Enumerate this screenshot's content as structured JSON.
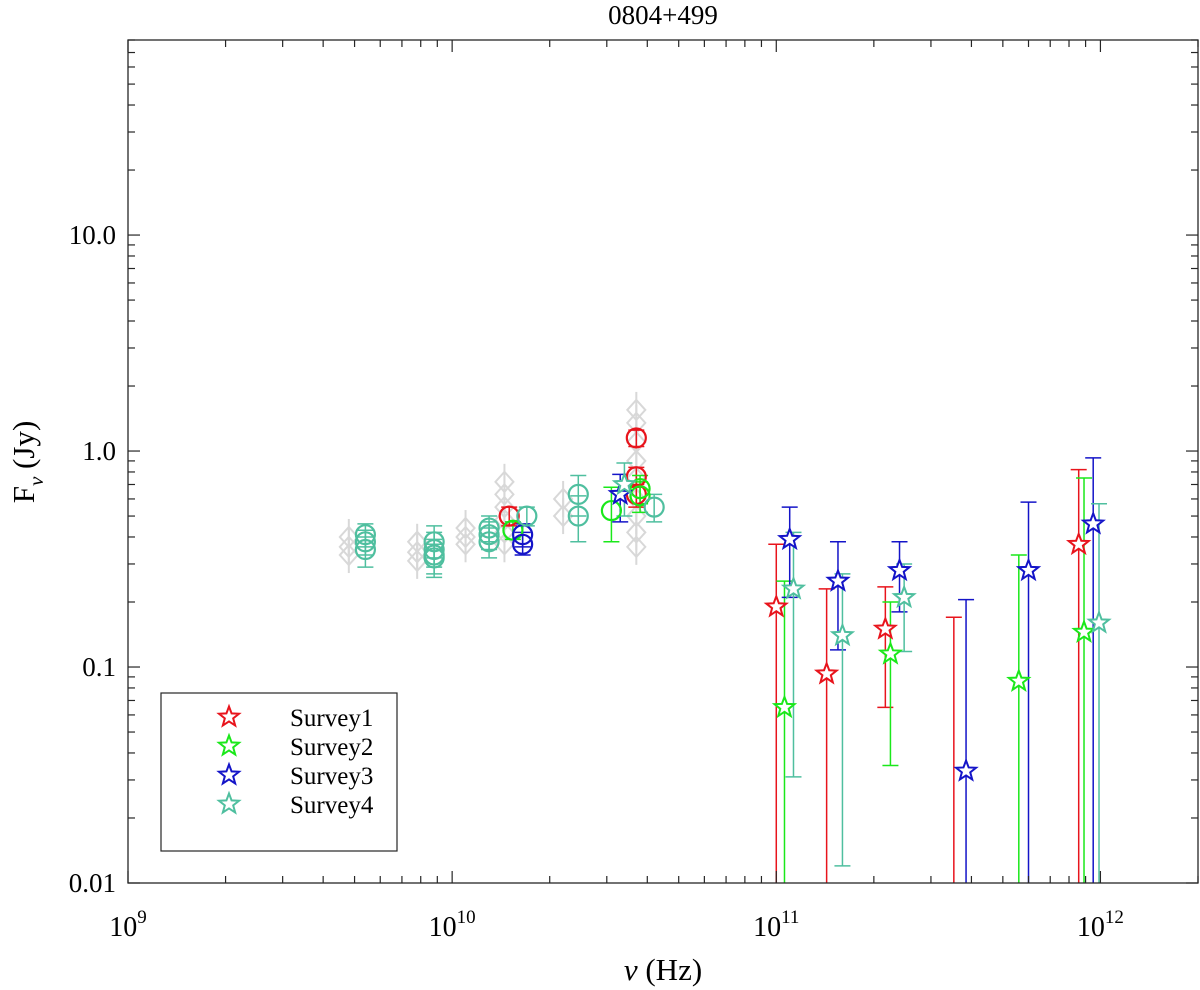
{
  "chart_data": {
    "type": "scatter",
    "title": "0804+499",
    "xlabel": {
      "base": "ν",
      "unit": " (Hz)"
    },
    "ylabel": {
      "base": "F",
      "sub": "ν",
      "unit": " (Jy)"
    },
    "xscale": "log",
    "yscale": "log",
    "xlim": [
      1000000000.0,
      2000000000000.0
    ],
    "ylim": [
      0.01,
      80
    ],
    "x_ticks": [
      {
        "value": 1000000000.0,
        "mantissa": "10",
        "exp": "9"
      },
      {
        "value": 10000000000.0,
        "mantissa": "10",
        "exp": "10"
      },
      {
        "value": 100000000000.0,
        "mantissa": "10",
        "exp": "11"
      },
      {
        "value": 1000000000000.0,
        "mantissa": "10",
        "exp": "12"
      }
    ],
    "y_ticks": [
      {
        "value": 0.01,
        "label": "0.01"
      },
      {
        "value": 0.1,
        "label": "0.1"
      },
      {
        "value": 1,
        "label": "1.0"
      },
      {
        "value": 10,
        "label": "10.0"
      }
    ],
    "legend_position": "bottom-left",
    "colors": {
      "Survey1": "#e8141c",
      "Survey2": "#1ae81a",
      "Survey3": "#1414c8",
      "Survey4": "#4fbf9f",
      "archival": "#d8d8d8"
    },
    "series": [
      {
        "name": "Survey1",
        "marker": "star",
        "points": [
          {
            "x": 100000000000.0,
            "y": 0.19,
            "lo": 0.01,
            "hi": 0.37
          },
          {
            "x": 143000000000.0,
            "y": 0.093,
            "lo": 0.01,
            "hi": 0.23
          },
          {
            "x": 217000000000.0,
            "y": 0.15,
            "lo": 0.065,
            "hi": 0.235
          },
          {
            "x": 353000000000.0,
            "y": null,
            "lo": 0.01,
            "hi": 0.17
          },
          {
            "x": 857000000000.0,
            "y": 0.37,
            "lo": 0.01,
            "hi": 0.82
          }
        ]
      },
      {
        "name": "Survey2",
        "marker": "star",
        "points": [
          {
            "x": 106000000000.0,
            "y": 0.065,
            "lo": 0.01,
            "hi": 0.25
          },
          {
            "x": 225000000000.0,
            "y": 0.115,
            "lo": 0.035,
            "hi": 0.2
          },
          {
            "x": 560000000000.0,
            "y": 0.086,
            "lo": 0.01,
            "hi": 0.33
          },
          {
            "x": 890000000000.0,
            "y": 0.145,
            "lo": 0.01,
            "hi": 0.75
          }
        ]
      },
      {
        "name": "Survey3",
        "marker": "star",
        "points": [
          {
            "x": 110000000000.0,
            "y": 0.39,
            "lo": 0.21,
            "hi": 0.55
          },
          {
            "x": 155000000000.0,
            "y": 0.25,
            "lo": 0.12,
            "hi": 0.38
          },
          {
            "x": 240000000000.0,
            "y": 0.28,
            "lo": 0.18,
            "hi": 0.38
          },
          {
            "x": 385000000000.0,
            "y": 0.033,
            "lo": 0.01,
            "hi": 0.205
          },
          {
            "x": 600000000000.0,
            "y": 0.28,
            "lo": 0.01,
            "hi": 0.58
          },
          {
            "x": 950000000000.0,
            "y": 0.46,
            "lo": 0.01,
            "hi": 0.93
          },
          {
            "x": 33000000000.0,
            "y": 0.63,
            "lo": 0.47,
            "hi": 0.78
          }
        ]
      },
      {
        "name": "Survey4",
        "marker": "star",
        "points": [
          {
            "x": 113000000000.0,
            "y": 0.23,
            "lo": 0.031,
            "hi": 0.42
          },
          {
            "x": 160000000000.0,
            "y": 0.14,
            "lo": 0.012,
            "hi": 0.27
          },
          {
            "x": 248000000000.0,
            "y": 0.21,
            "lo": 0.118,
            "hi": 0.3
          },
          {
            "x": 990000000000.0,
            "y": 0.16,
            "lo": 0.01,
            "hi": 0.57
          },
          {
            "x": 34000000000.0,
            "y": 0.7,
            "lo": 0.5,
            "hi": 0.88
          }
        ]
      }
    ],
    "circle_points": [
      {
        "color": "Survey4",
        "x": 5400000000.0,
        "y": 0.41,
        "lo": 0.36,
        "hi": 0.46
      },
      {
        "color": "Survey4",
        "x": 5400000000.0,
        "y": 0.38,
        "lo": 0.33,
        "hi": 0.43
      },
      {
        "color": "Survey4",
        "x": 5400000000.0,
        "y": 0.35,
        "lo": 0.29,
        "hi": 0.4
      },
      {
        "color": "Survey4",
        "x": 8800000000.0,
        "y": 0.38,
        "lo": 0.32,
        "hi": 0.45
      },
      {
        "color": "Survey4",
        "x": 8800000000.0,
        "y": 0.35,
        "lo": 0.29,
        "hi": 0.42
      },
      {
        "color": "Survey4",
        "x": 8800000000.0,
        "y": 0.33,
        "lo": 0.27,
        "hi": 0.39
      },
      {
        "color": "Survey4",
        "x": 8800000000.0,
        "y": 0.32,
        "lo": 0.26,
        "hi": 0.37
      },
      {
        "color": "Survey4",
        "x": 13000000000.0,
        "y": 0.44,
        "lo": 0.38,
        "hi": 0.5
      },
      {
        "color": "Survey4",
        "x": 13000000000.0,
        "y": 0.41,
        "lo": 0.35,
        "hi": 0.47
      },
      {
        "color": "Survey4",
        "x": 13000000000.0,
        "y": 0.38,
        "lo": 0.32,
        "hi": 0.44
      },
      {
        "color": "Survey1",
        "x": 15000000000.0,
        "y": 0.5,
        "lo": 0.45,
        "hi": 0.55
      },
      {
        "color": "Survey2",
        "x": 15400000000.0,
        "y": 0.43,
        "lo": 0.39,
        "hi": 0.47
      },
      {
        "color": "Survey3",
        "x": 16500000000.0,
        "y": 0.41,
        "lo": 0.36,
        "hi": 0.46
      },
      {
        "color": "Survey3",
        "x": 16500000000.0,
        "y": 0.37,
        "lo": 0.33,
        "hi": 0.42
      },
      {
        "color": "Survey4",
        "x": 17000000000.0,
        "y": 0.5,
        "lo": 0.45,
        "hi": 0.55
      },
      {
        "color": "Survey4",
        "x": 24500000000.0,
        "y": 0.63,
        "lo": 0.5,
        "hi": 0.77
      },
      {
        "color": "Survey4",
        "x": 24500000000.0,
        "y": 0.5,
        "lo": 0.38,
        "hi": 0.62
      },
      {
        "color": "Survey1",
        "x": 37000000000.0,
        "y": 1.15,
        "lo": 1.05,
        "hi": 1.25
      },
      {
        "color": "Survey1",
        "x": 37000000000.0,
        "y": 0.76,
        "lo": 0.68,
        "hi": 0.84
      },
      {
        "color": "Survey1",
        "x": 37000000000.0,
        "y": 0.63,
        "lo": 0.55,
        "hi": 0.7
      },
      {
        "color": "Survey2",
        "x": 38000000000.0,
        "y": 0.67,
        "lo": 0.57,
        "hi": 0.77
      },
      {
        "color": "Survey2",
        "x": 38000000000.0,
        "y": 0.62,
        "lo": 0.52,
        "hi": 0.72
      },
      {
        "color": "Survey4",
        "x": 42000000000.0,
        "y": 0.55,
        "lo": 0.47,
        "hi": 0.63
      },
      {
        "color": "Survey2",
        "x": 31000000000.0,
        "y": 0.53,
        "lo": 0.38,
        "hi": 0.68
      }
    ],
    "archival_points": [
      {
        "x": 4800000000.0,
        "y": 0.4
      },
      {
        "x": 4800000000.0,
        "y": 0.36
      },
      {
        "x": 4800000000.0,
        "y": 0.33
      },
      {
        "x": 7800000000.0,
        "y": 0.38
      },
      {
        "x": 7800000000.0,
        "y": 0.34
      },
      {
        "x": 7800000000.0,
        "y": 0.31
      },
      {
        "x": 11000000000.0,
        "y": 0.44
      },
      {
        "x": 11000000000.0,
        "y": 0.4
      },
      {
        "x": 11000000000.0,
        "y": 0.37
      },
      {
        "x": 14500000000.0,
        "y": 0.72
      },
      {
        "x": 14500000000.0,
        "y": 0.63
      },
      {
        "x": 14500000000.0,
        "y": 0.55
      },
      {
        "x": 14500000000.0,
        "y": 0.48
      },
      {
        "x": 14500000000.0,
        "y": 0.42
      },
      {
        "x": 14500000000.0,
        "y": 0.37
      },
      {
        "x": 22000000000.0,
        "y": 0.6
      },
      {
        "x": 22000000000.0,
        "y": 0.5
      },
      {
        "x": 37000000000.0,
        "y": 1.55
      },
      {
        "x": 37000000000.0,
        "y": 1.35
      },
      {
        "x": 37000000000.0,
        "y": 1.1
      },
      {
        "x": 37000000000.0,
        "y": 0.9
      },
      {
        "x": 37000000000.0,
        "y": 0.75
      },
      {
        "x": 37000000000.0,
        "y": 0.6
      },
      {
        "x": 37000000000.0,
        "y": 0.5
      },
      {
        "x": 37000000000.0,
        "y": 0.42
      },
      {
        "x": 37000000000.0,
        "y": 0.36
      }
    ]
  }
}
